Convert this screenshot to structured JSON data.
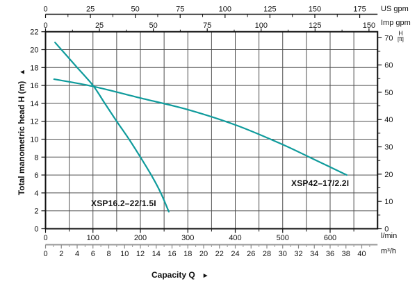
{
  "chart_data": {
    "type": "line",
    "title": "",
    "xlabel": "Capacity Q",
    "xlabel_arrow": "►",
    "ylabel_left": "Total manometric head H (m)",
    "ylabel_left_arrow": "▲",
    "ylabel_right_line1": "H",
    "ylabel_right_line2": "[ft]",
    "x_range_lmin": [
      0,
      700
    ],
    "ylim_m": [
      0,
      22
    ],
    "grid": "on",
    "axes": {
      "top_us_gpm": {
        "unit": "US gpm",
        "ticks": [
          0,
          25,
          50,
          75,
          100,
          125,
          150,
          175
        ]
      },
      "top_imp_gpm": {
        "unit": "Imp gpm",
        "ticks": [
          0,
          25,
          50,
          75,
          100,
          125,
          150
        ]
      },
      "bottom_lmin": {
        "unit": "l/min",
        "ticks": [
          0,
          100,
          200,
          300,
          400,
          500,
          600
        ]
      },
      "bottom_m3h": {
        "unit": "m³/h",
        "ticks": [
          0,
          2,
          4,
          6,
          8,
          10,
          12,
          14,
          16,
          18,
          20,
          22,
          24,
          26,
          28,
          30,
          32,
          34,
          36,
          38,
          40
        ]
      },
      "left_m": {
        "unit": "m",
        "ticks": [
          0,
          2,
          4,
          6,
          8,
          10,
          12,
          14,
          16,
          18,
          20,
          22
        ]
      },
      "right_ft": {
        "unit": "ft",
        "ticks": [
          0,
          10,
          20,
          30,
          40,
          50,
          60,
          70
        ]
      }
    },
    "series": [
      {
        "name": "XSP16.2–22/1.5I",
        "points_q_lmin_h_m": [
          [
            20,
            20.8
          ],
          [
            60,
            18.4
          ],
          [
            100,
            16.0
          ],
          [
            125,
            14.0
          ],
          [
            150,
            12.0
          ],
          [
            176,
            10.0
          ],
          [
            200,
            8.0
          ],
          [
            225,
            5.8
          ],
          [
            243,
            4.0
          ],
          [
            260,
            1.9
          ]
        ]
      },
      {
        "name": "XSP42–17/2.2I",
        "points_q_lmin_h_m": [
          [
            18,
            16.7
          ],
          [
            100,
            15.9
          ],
          [
            200,
            14.6
          ],
          [
            300,
            13.3
          ],
          [
            400,
            11.6
          ],
          [
            500,
            9.4
          ],
          [
            560,
            7.9
          ],
          [
            635,
            6.0
          ]
        ]
      }
    ],
    "colors": {
      "curve": "#0f9b9c",
      "grid": "#4d4d4d",
      "axis": "#111111",
      "scalebar": "#999999"
    }
  }
}
